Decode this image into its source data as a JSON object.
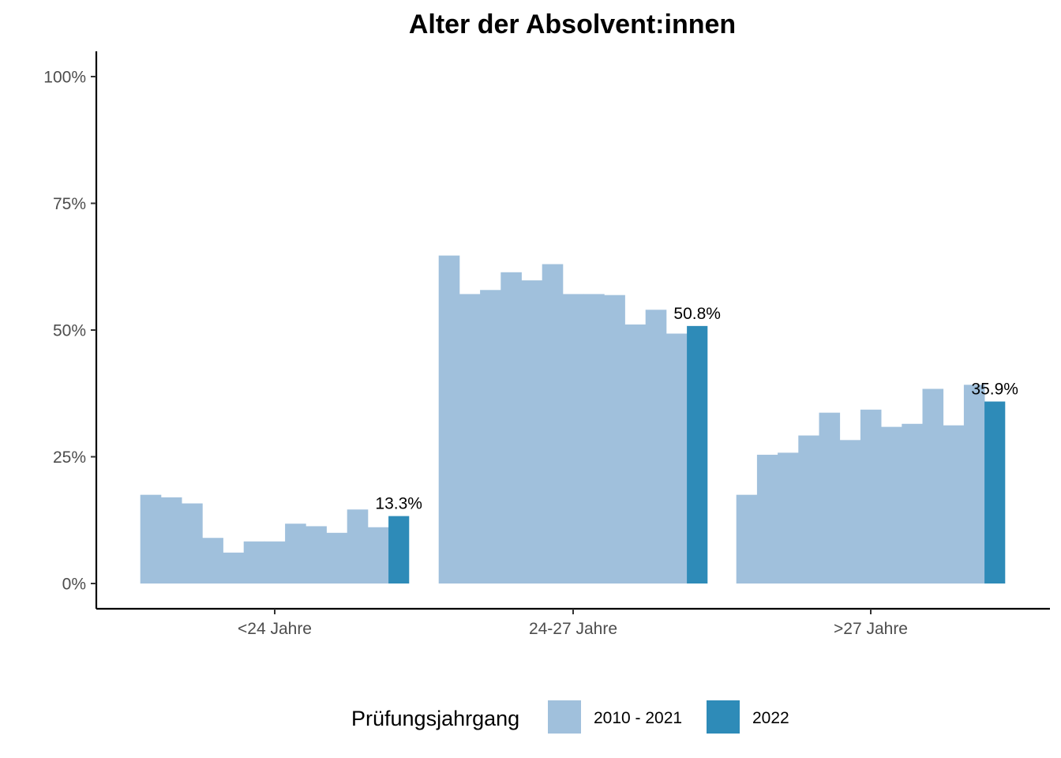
{
  "chart_data": {
    "type": "bar",
    "title": "Alter der Absolvent:innen",
    "xlabel": "",
    "ylabel": "",
    "ylim": [
      -5,
      105
    ],
    "y_ticks": [
      {
        "value": 0,
        "label": "0%"
      },
      {
        "value": 25,
        "label": "25%"
      },
      {
        "value": 50,
        "label": "50%"
      },
      {
        "value": 75,
        "label": "75%"
      },
      {
        "value": 100,
        "label": "100%"
      }
    ],
    "categories": [
      "<24 Jahre",
      "24-27 Jahre",
      ">27 Jahre"
    ],
    "grid": false,
    "legend": {
      "title": "Prüfungsjahrgang",
      "placement": "bottom",
      "entries": [
        {
          "label": "2010 - 2021",
          "color": "#a0c0dc"
        },
        {
          "label": "2022",
          "color": "#2e8bb8"
        }
      ]
    },
    "series": [
      {
        "name": "2010 - 2021",
        "color": "#a0c0dc",
        "values_by_category": [
          [
            17.5,
            17.0,
            15.8,
            9.0,
            6.1,
            8.3,
            8.3,
            11.8,
            11.3,
            10.0,
            14.6,
            11.1
          ],
          [
            64.7,
            57.1,
            57.9,
            61.4,
            59.8,
            63.0,
            57.1,
            57.1,
            56.9,
            51.1,
            54.0,
            49.3
          ],
          [
            17.5,
            25.4,
            25.8,
            29.2,
            33.7,
            28.3,
            34.3,
            30.9,
            31.5,
            38.4,
            31.2,
            39.2
          ]
        ]
      },
      {
        "name": "2022",
        "color": "#2e8bb8",
        "values": [
          13.3,
          50.8,
          35.9
        ],
        "labels": [
          "13.3%",
          "50.8%",
          "35.9%"
        ]
      }
    ]
  }
}
